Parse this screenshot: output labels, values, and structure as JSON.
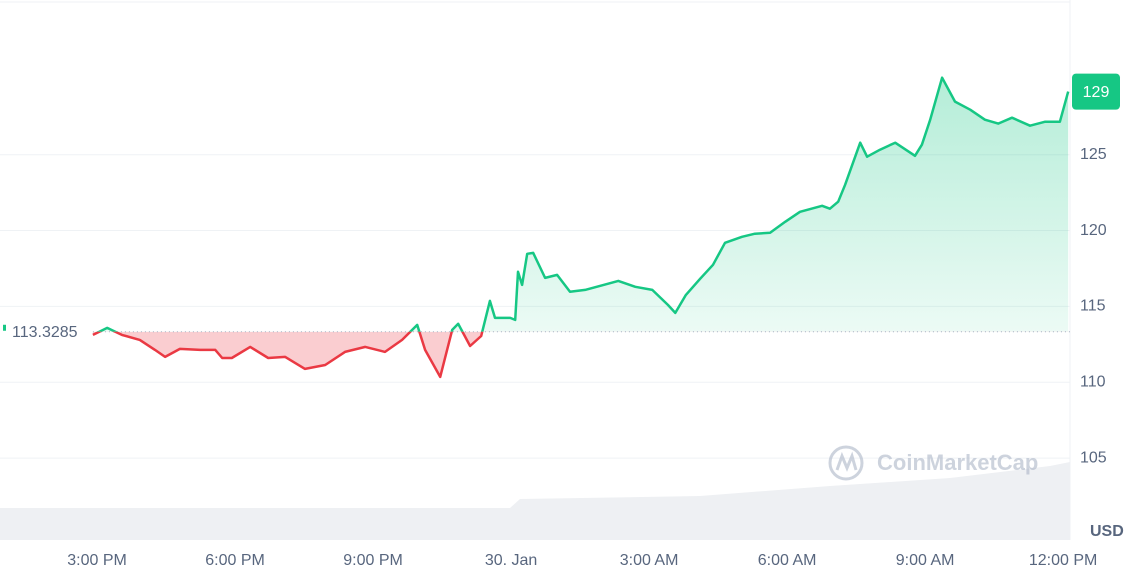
{
  "chart_data": {
    "type": "line",
    "x": [
      -0.09,
      0.22,
      0.54,
      0.93,
      1.26,
      1.48,
      1.8,
      2.24,
      2.57,
      2.72,
      2.93,
      3.33,
      3.72,
      4.09,
      4.52,
      4.96,
      5.39,
      5.83,
      6.26,
      6.63,
      6.96,
      7.13,
      7.46,
      7.72,
      7.85,
      8.11,
      8.35,
      8.54,
      8.65,
      8.98,
      9.09,
      9.15,
      9.24,
      9.35,
      9.48,
      9.74,
      10.0,
      10.28,
      10.61,
      10.93,
      11.33,
      11.7,
      12.07,
      12.41,
      12.57,
      12.8,
      13.11,
      13.39,
      13.65,
      14.02,
      14.3,
      14.63,
      14.96,
      15.28,
      15.76,
      15.93,
      16.11,
      16.26,
      16.59,
      16.74,
      17.02,
      17.35,
      17.78,
      17.93,
      18.11,
      18.37,
      18.65,
      18.98,
      19.3,
      19.59,
      19.89,
      20.28,
      20.61,
      20.93,
      21.11
    ],
    "values": [
      113.12,
      113.58,
      113.12,
      112.79,
      112.13,
      111.67,
      112.2,
      112.13,
      112.13,
      111.6,
      111.6,
      112.33,
      111.6,
      111.67,
      110.88,
      111.14,
      112.0,
      112.33,
      112.0,
      112.79,
      113.78,
      112.13,
      110.35,
      113.45,
      113.85,
      112.39,
      113.05,
      115.36,
      114.24,
      114.24,
      114.11,
      117.28,
      116.42,
      118.47,
      118.53,
      116.88,
      117.08,
      115.96,
      116.09,
      116.35,
      116.68,
      116.29,
      116.09,
      115.1,
      114.57,
      115.76,
      116.82,
      117.74,
      119.19,
      119.59,
      119.79,
      119.85,
      120.58,
      121.24,
      121.63,
      121.44,
      121.9,
      123.02,
      125.79,
      124.87,
      125.33,
      125.79,
      124.93,
      125.66,
      127.31,
      130.08,
      128.5,
      127.97,
      127.31,
      127.05,
      127.44,
      126.91,
      127.18,
      127.18,
      129.16
    ],
    "color": "#16c784",
    "down_color": "#ea3943",
    "baseline": 113.3285,
    "last_label": "129",
    "xlim": [
      -2.11,
      21.15
    ],
    "xticks": [
      {
        "value": 0,
        "label": "3:00 PM"
      },
      {
        "value": 3,
        "label": "6:00 PM"
      },
      {
        "value": 6,
        "label": "9:00 PM"
      },
      {
        "value": 9,
        "label": "30. Jan"
      },
      {
        "value": 12,
        "label": "3:00 AM"
      },
      {
        "value": 15,
        "label": "6:00 AM"
      },
      {
        "value": 18,
        "label": "9:00 AM"
      },
      {
        "value": 21,
        "label": "12:00 PM"
      }
    ],
    "ylim": [
      99.6,
      135.2
    ],
    "yticks": [
      105,
      110,
      115,
      120,
      125
    ],
    "y_unit": "USD",
    "watermark": "CoinMarketCap",
    "grid": true
  }
}
